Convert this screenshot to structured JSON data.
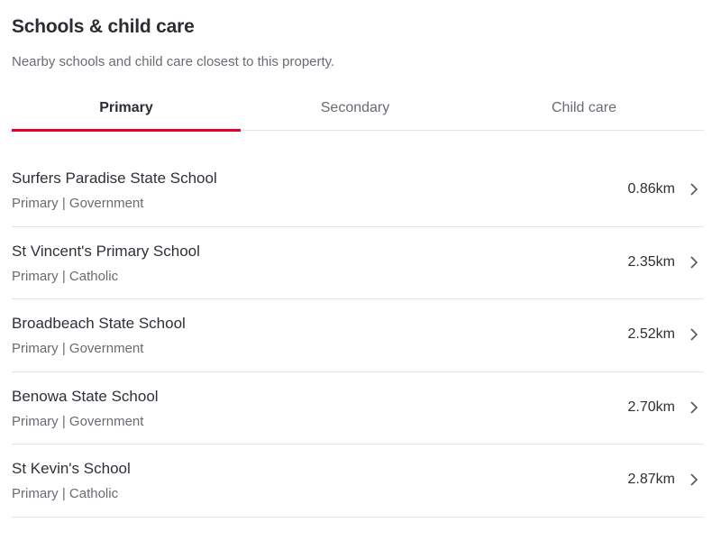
{
  "section": {
    "title": "Schools & child care",
    "subtitle": "Nearby schools and child care closest to this property."
  },
  "tabs": [
    {
      "label": "Primary",
      "active": true
    },
    {
      "label": "Secondary",
      "active": false
    },
    {
      "label": "Child care",
      "active": false
    }
  ],
  "schools": [
    {
      "name": "Surfers Paradise State School",
      "meta": "Primary | Government",
      "distance": "0.86km"
    },
    {
      "name": "St Vincent's Primary School",
      "meta": "Primary | Catholic",
      "distance": "2.35km"
    },
    {
      "name": "Broadbeach State School",
      "meta": "Primary | Government",
      "distance": "2.52km"
    },
    {
      "name": "Benowa State School",
      "meta": "Primary | Government",
      "distance": "2.70km"
    },
    {
      "name": "St Kevin's School",
      "meta": "Primary | Catholic",
      "distance": "2.87km"
    }
  ],
  "colors": {
    "accent": "#e4002b"
  },
  "icons": {
    "row_chevron": "chevron-right-icon"
  }
}
